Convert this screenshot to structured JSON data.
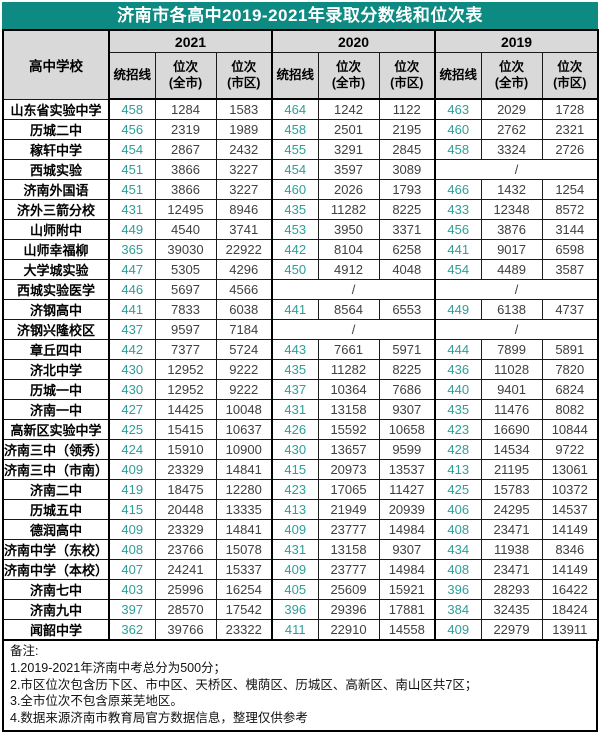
{
  "title": "济南市各高中2019-2021年录取分数线和位次表",
  "colors": {
    "title_bg": "#0d8b83",
    "title_text": "#ffffff",
    "header_bg": "#d9d9d9",
    "score_text": "#2f9e98",
    "rank_text": "#404040",
    "border": "#000000"
  },
  "chart_data": {
    "type": "table",
    "title": "济南市各高中2019-2021年录取分数线和位次表",
    "row_header": "高中学校",
    "year_groups": [
      "2021",
      "2020",
      "2019"
    ],
    "sub_columns": [
      "统招线",
      "位次\n(全市)",
      "位次\n(市区)"
    ],
    "rows": [
      {
        "name": "山东省实验中学",
        "y2021": [
          458,
          1284,
          1583
        ],
        "y2020": [
          464,
          1242,
          1122
        ],
        "y2019": [
          463,
          2029,
          1728
        ]
      },
      {
        "name": "历城二中",
        "y2021": [
          456,
          2319,
          1989
        ],
        "y2020": [
          458,
          2501,
          2195
        ],
        "y2019": [
          460,
          2762,
          2321
        ]
      },
      {
        "name": "稼轩中学",
        "y2021": [
          454,
          2867,
          2432
        ],
        "y2020": [
          455,
          3291,
          2845
        ],
        "y2019": [
          458,
          3324,
          2726
        ]
      },
      {
        "name": "西城实验",
        "y2021": [
          451,
          3866,
          3227
        ],
        "y2020": [
          454,
          3597,
          3089
        ],
        "y2019": "/"
      },
      {
        "name": "济南外国语",
        "y2021": [
          451,
          3866,
          3227
        ],
        "y2020": [
          460,
          2026,
          1793
        ],
        "y2019": [
          466,
          1432,
          1254
        ]
      },
      {
        "name": "济外三箭分校",
        "y2021": [
          431,
          12495,
          8946
        ],
        "y2020": [
          435,
          11282,
          8225
        ],
        "y2019": [
          433,
          12348,
          8572
        ]
      },
      {
        "name": "山师附中",
        "y2021": [
          449,
          4540,
          3741
        ],
        "y2020": [
          453,
          3950,
          3371
        ],
        "y2019": [
          456,
          3876,
          3144
        ]
      },
      {
        "name": "山师幸福柳",
        "y2021": [
          365,
          39030,
          22922
        ],
        "y2020": [
          442,
          8104,
          6258
        ],
        "y2019": [
          441,
          9017,
          6598
        ]
      },
      {
        "name": "大学城实验",
        "y2021": [
          447,
          5305,
          4296
        ],
        "y2020": [
          450,
          4912,
          4048
        ],
        "y2019": [
          454,
          4489,
          3587
        ]
      },
      {
        "name": "西城实验医学",
        "y2021": [
          446,
          5697,
          4566
        ],
        "y2020": "/",
        "y2019": "/"
      },
      {
        "name": "济钢高中",
        "y2021": [
          441,
          7833,
          6038
        ],
        "y2020": [
          441,
          8564,
          6553
        ],
        "y2019": [
          449,
          6138,
          4737
        ]
      },
      {
        "name": "济钢兴隆校区",
        "y2021": [
          437,
          9597,
          7184
        ],
        "y2020": "/",
        "y2019": "/"
      },
      {
        "name": "章丘四中",
        "y2021": [
          442,
          7377,
          5724
        ],
        "y2020": [
          443,
          7661,
          5971
        ],
        "y2019": [
          444,
          7899,
          5891
        ]
      },
      {
        "name": "济北中学",
        "y2021": [
          430,
          12952,
          9222
        ],
        "y2020": [
          435,
          11282,
          8225
        ],
        "y2019": [
          436,
          11028,
          7820
        ]
      },
      {
        "name": "历城一中",
        "y2021": [
          430,
          12952,
          9222
        ],
        "y2020": [
          437,
          10364,
          7686
        ],
        "y2019": [
          440,
          9401,
          6824
        ]
      },
      {
        "name": "济南一中",
        "y2021": [
          427,
          14425,
          10048
        ],
        "y2020": [
          431,
          13158,
          9307
        ],
        "y2019": [
          435,
          11476,
          8082
        ]
      },
      {
        "name": "高新区实验中学",
        "y2021": [
          425,
          15415,
          10637
        ],
        "y2020": [
          426,
          15592,
          10658
        ],
        "y2019": [
          423,
          16690,
          10844
        ]
      },
      {
        "name": "济南三中（领秀）",
        "y2021": [
          424,
          15910,
          10900
        ],
        "y2020": [
          430,
          13657,
          9599
        ],
        "y2019": [
          428,
          14534,
          9722
        ]
      },
      {
        "name": "济南三中（市南）",
        "y2021": [
          409,
          23329,
          14841
        ],
        "y2020": [
          415,
          20973,
          13537
        ],
        "y2019": [
          413,
          21195,
          13061
        ]
      },
      {
        "name": "济南二中",
        "y2021": [
          419,
          18475,
          12280
        ],
        "y2020": [
          423,
          17065,
          11427
        ],
        "y2019": [
          425,
          15783,
          10372
        ]
      },
      {
        "name": "历城五中",
        "y2021": [
          415,
          20448,
          13335
        ],
        "y2020": [
          413,
          21949,
          20939
        ],
        "y2019": [
          406,
          24295,
          14537
        ]
      },
      {
        "name": "德润高中",
        "y2021": [
          409,
          23329,
          14841
        ],
        "y2020": [
          409,
          23777,
          14984
        ],
        "y2019": [
          408,
          23471,
          14149
        ]
      },
      {
        "name": "济南中学（东校）",
        "y2021": [
          408,
          23766,
          15078
        ],
        "y2020": [
          431,
          13158,
          9307
        ],
        "y2019": [
          434,
          11938,
          8346
        ]
      },
      {
        "name": "济南中学（本校）",
        "y2021": [
          407,
          24241,
          15337
        ],
        "y2020": [
          409,
          23777,
          14984
        ],
        "y2019": [
          408,
          23471,
          14149
        ]
      },
      {
        "name": "济南七中",
        "y2021": [
          403,
          25996,
          16254
        ],
        "y2020": [
          405,
          25609,
          15921
        ],
        "y2019": [
          396,
          28293,
          16422
        ]
      },
      {
        "name": "济南九中",
        "y2021": [
          397,
          28570,
          17542
        ],
        "y2020": [
          396,
          29396,
          17881
        ],
        "y2019": [
          384,
          32435,
          18424
        ]
      },
      {
        "name": "闻韶中学",
        "y2021": [
          362,
          39766,
          23322
        ],
        "y2020": [
          411,
          22910,
          14558
        ],
        "y2019": [
          409,
          22979,
          13911
        ]
      }
    ],
    "notes": [
      "备注:",
      "1.2019-2021年济南中考总分为500分；",
      "2.市区位次包含历下区、市中区、天桥区、槐荫区、历城区、高新区、南山区共7区；",
      "3.全市位次不包含原莱芜地区。",
      "4.数据来源济南市教育局官方数据信息，整理仅供参考"
    ]
  }
}
